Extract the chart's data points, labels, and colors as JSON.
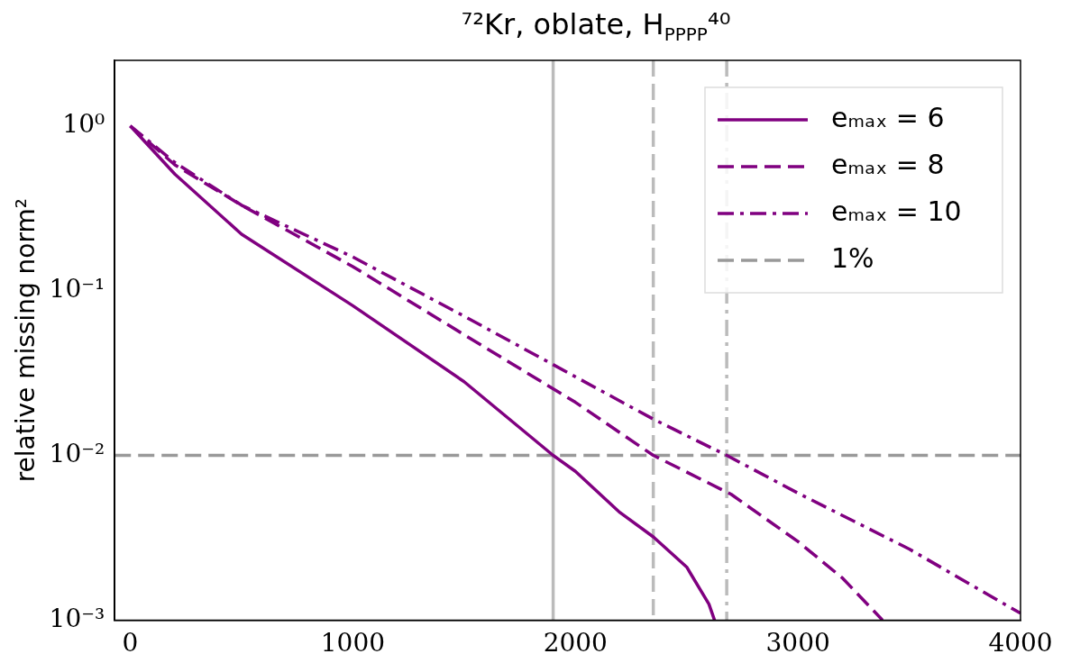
{
  "chart_data": {
    "type": "line",
    "title": "⁷²Kr, oblate, H$_{PPPP}$⁴⁰",
    "ylabel": "relative missing norm²",
    "log": "y",
    "grid": false,
    "legend": "top right",
    "line_style": "solid",
    "marker": "none",
    "xlim": [
      -70,
      4000
    ],
    "xticks": [
      0,
      1000,
      2000,
      3000,
      4000
    ],
    "ylim": [
      0.001,
      2.5
    ],
    "yticks": [
      {
        "value": 1,
        "label": "10⁰"
      },
      {
        "value": 0.1,
        "label": "10⁻¹"
      },
      {
        "value": 0.01,
        "label": "10⁻²"
      },
      {
        "value": 0.001,
        "label": "10⁻³"
      }
    ],
    "series": [
      {
        "name": "eₘₐₓ = 6",
        "color": "#800080",
        "x": [
          0,
          200,
          500,
          1000,
          1500,
          1900,
          2000,
          2200,
          2350,
          2500,
          2600,
          2625
        ],
        "values": [
          1,
          0.51,
          0.22,
          0.081,
          0.028,
          0.01,
          0.008,
          0.0045,
          0.0032,
          0.0021,
          0.00125,
          0.001
        ]
      },
      {
        "name": "eₘₐₓ = 8",
        "color": "#800080",
        "line_style": "dashed",
        "x": [
          0,
          200,
          500,
          1000,
          1500,
          2000,
          2350,
          2700,
          3000,
          3200,
          3380
        ],
        "values": [
          1,
          0.58,
          0.33,
          0.14,
          0.054,
          0.021,
          0.01,
          0.0058,
          0.003,
          0.0018,
          0.001
        ]
      },
      {
        "name": "eₘₐₓ = 10",
        "color": "#800080",
        "line_style": "dashdot",
        "x": [
          0,
          200,
          500,
          1000,
          1500,
          2000,
          2350,
          2680,
          3000,
          3500,
          4000
        ],
        "values": [
          1,
          0.6,
          0.33,
          0.16,
          0.07,
          0.03,
          0.0166,
          0.01,
          0.0059,
          0.0027,
          0.0011
        ]
      }
    ],
    "ref_lines": [
      {
        "axis": "x",
        "value": 1900,
        "color": "#bbbbbb",
        "line_style": "solid"
      },
      {
        "axis": "x",
        "value": 2350,
        "color": "#bbbbbb",
        "line_style": "dashed"
      },
      {
        "axis": "x",
        "value": 2680,
        "color": "#bbbbbb",
        "line_style": "dashdot"
      },
      {
        "axis": "y",
        "value": 0.01,
        "label": "1%",
        "color": "#999999",
        "line_style": "dashed"
      }
    ]
  }
}
